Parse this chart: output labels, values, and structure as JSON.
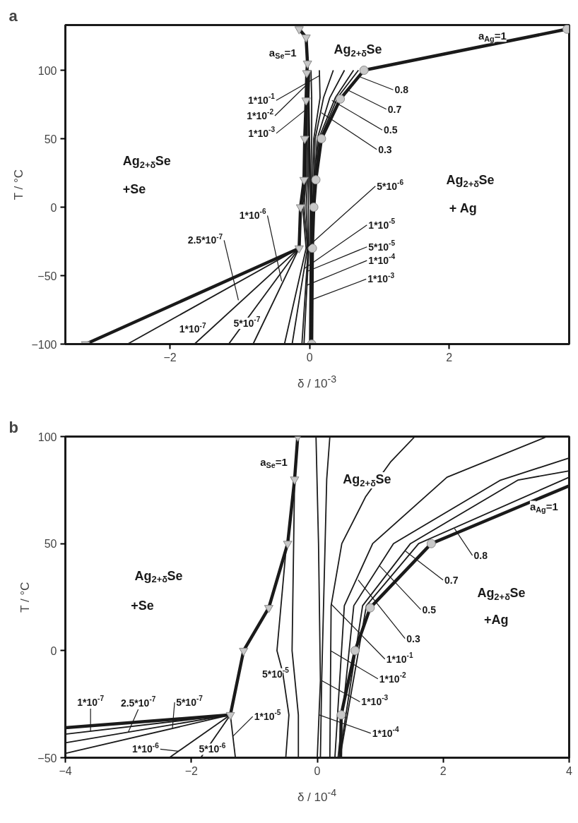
{
  "chart_data": [
    {
      "type": "line",
      "title": "a",
      "xlabel": "δ / 10$^{-3}$",
      "ylabel": "T / °C",
      "xlim": [
        -3.5,
        3.72
      ],
      "ylim": [
        -100,
        133
      ],
      "xticks": [
        -2,
        0,
        2
      ],
      "yticks": [
        -100,
        -50,
        0,
        50,
        100
      ],
      "series": [
        {
          "type": "line",
          "color": "#1a1a1a",
          "x": [
            -3.21,
            -0.15,
            -0.13,
            -0.08,
            -0.07,
            -0.05,
            -0.04,
            -0.03,
            -0.05,
            -0.15
          ],
          "values": [
            -100,
            -30,
            0,
            20,
            50,
            78,
            98,
            105,
            124,
            130
          ]
        },
        {
          "type": "line",
          "color": "#1a1a1a",
          "x": [
            0.03,
            0.04,
            0.06,
            0.09,
            0.17,
            0.44,
            0.78,
            3.69
          ],
          "values": [
            -100,
            -30,
            0,
            20,
            50,
            79,
            100,
            130
          ]
        },
        {
          "type": "line",
          "color": "#1a1a1a",
          "x": [
            -2.61,
            -0.15
          ],
          "values": [
            -100,
            -30
          ]
        },
        {
          "type": "line",
          "color": "#1a1a1a",
          "x": [
            -1.65,
            -0.15
          ],
          "values": [
            -100,
            -30
          ]
        },
        {
          "type": "line",
          "color": "#1a1a1a",
          "x": [
            -1.16,
            -0.15
          ],
          "values": [
            -100,
            -30
          ]
        },
        {
          "type": "line",
          "color": "#1a1a1a",
          "x": [
            -0.81,
            -0.15
          ],
          "values": [
            -100,
            -30
          ]
        },
        {
          "type": "line",
          "color": "#1a1a1a",
          "x": [
            -0.36,
            -0.05,
            -0.1,
            -0.06,
            -0.05,
            -0.04,
            -0.03
          ],
          "values": [
            -100,
            -30,
            0,
            20,
            50,
            80,
            100
          ]
        },
        {
          "type": "line",
          "color": "#1a1a1a",
          "x": [
            -0.25,
            -0.03,
            -0.08,
            -0.05,
            -0.04,
            -0.03,
            -0.02
          ],
          "values": [
            -100,
            -30,
            0,
            20,
            50,
            80,
            100
          ]
        },
        {
          "type": "line",
          "color": "#1a1a1a",
          "x": [
            -0.11,
            -0.02,
            -0.05,
            -0.03,
            -0.02,
            -0.02,
            -0.01
          ],
          "values": [
            -100,
            -30,
            0,
            20,
            50,
            80,
            100
          ]
        },
        {
          "type": "line",
          "color": "#1a1a1a",
          "x": [
            -0.08,
            -0.01,
            -0.02,
            -0.01,
            -0.01,
            -0.01,
            0.0
          ],
          "values": [
            -100,
            -30,
            0,
            20,
            50,
            80,
            100
          ]
        },
        {
          "type": "line",
          "color": "#1a1a1a",
          "x": [
            0.0,
            0.01,
            0.01,
            0.01,
            0.0,
            -0.01,
            -0.01
          ],
          "values": [
            -100,
            -30,
            0,
            20,
            50,
            80,
            100
          ]
        },
        {
          "type": "line",
          "color": "#1a1a1a",
          "x": [
            0.01,
            0.02,
            0.02,
            0.02,
            0.03,
            0.03,
            0.02
          ],
          "values": [
            -100,
            -30,
            0,
            20,
            50,
            80,
            100
          ]
        },
        {
          "type": "line",
          "color": "#1a1a1a",
          "x": [
            0.02,
            0.02,
            0.03,
            0.04,
            0.06,
            0.15,
            0.14
          ],
          "values": [
            -100,
            -30,
            0,
            20,
            50,
            80,
            100
          ]
        },
        {
          "type": "line",
          "color": "#1a1a1a",
          "x": [
            0.02,
            0.03,
            0.04,
            0.06,
            0.08,
            0.2,
            0.34
          ],
          "values": [
            -100,
            -30,
            0,
            20,
            50,
            80,
            100
          ]
        },
        {
          "type": "line",
          "color": "#1a1a1a",
          "x": [
            0.03,
            0.03,
            0.05,
            0.07,
            0.11,
            0.29,
            0.5
          ],
          "values": [
            -100,
            -30,
            0,
            20,
            50,
            80,
            100
          ]
        },
        {
          "type": "line",
          "color": "#1a1a1a",
          "x": [
            0.03,
            0.04,
            0.05,
            0.08,
            0.13,
            0.37,
            0.63
          ],
          "values": [
            -100,
            -30,
            0,
            20,
            50,
            80,
            100
          ]
        },
        {
          "type": "line",
          "color": "#1a1a1a",
          "x": [
            0.03,
            0.04,
            0.06,
            0.08,
            0.15,
            0.4,
            0.7
          ],
          "values": [
            -100,
            -30,
            0,
            20,
            50,
            80,
            100
          ]
        },
        {
          "type": "scatter",
          "marker": "triangle",
          "color": "#c8c8c8",
          "x": [
            -3.21,
            -0.15,
            -0.13,
            -0.08,
            -0.07,
            -0.05,
            -0.04,
            -0.03,
            -0.05,
            -0.15
          ],
          "values": [
            -100,
            -30,
            0,
            20,
            50,
            78,
            98,
            105,
            124,
            130
          ]
        },
        {
          "type": "scatter",
          "marker": "circle",
          "color": "#c8c8c8",
          "x": [
            0.03,
            0.04,
            0.06,
            0.09,
            0.17,
            0.44,
            0.78,
            3.69
          ],
          "values": [
            -100,
            -30,
            0,
            20,
            50,
            79,
            100,
            130
          ]
        }
      ],
      "annotations": [
        "Ag$_{2+δ}$Se",
        "+Se",
        "Ag$_{2+δ}$Se",
        "+ Ag",
        "Ag$_{2+δ}$Se",
        {
          "text": "a$_{Se}$=1",
          "x": -0.04,
          "y": 113
        },
        {
          "text": "a$_{Ag}$=1",
          "x": 2.62,
          "y": 119
        },
        {
          "text": "1*10$^{-1}$",
          "x": 0.14,
          "y": 96
        },
        {
          "text": "1*10$^{-2}$",
          "x": -0.01,
          "y": 91
        },
        {
          "text": "1*10$^{-3}$",
          "x": -0.01,
          "y": 73
        },
        {
          "text": "0.8",
          "x": 0.73,
          "y": 95
        },
        {
          "text": "0.7",
          "x": 0.53,
          "y": 86
        },
        {
          "text": "0.5",
          "x": 0.32,
          "y": 78
        },
        {
          "text": "0.3",
          "x": 0.17,
          "y": 69
        },
        {
          "text": "1*10$^{-6}$",
          "x": -0.4,
          "y": -54
        },
        {
          "text": "2.5*10$^{-7}$",
          "x": -1.02,
          "y": -68
        },
        {
          "text": "1*10$^{-7}$",
          "x": -2.03,
          "y": -84
        },
        {
          "text": "5*10$^{-7}$",
          "x": -1.04,
          "y": -92
        },
        {
          "text": "5*10$^{-6}$",
          "x": -0.05,
          "y": -30
        },
        {
          "text": "1*10$^{-5}$",
          "x": -0.08,
          "y": -45
        },
        {
          "text": "5*10$^{-5}$",
          "x": -0.04,
          "y": -47
        },
        {
          "text": "1*10$^{-4}$",
          "x": -0.04,
          "y": -57
        },
        {
          "text": "1*10$^{-3}$",
          "x": 0.01,
          "y": -68
        }
      ]
    },
    {
      "type": "line",
      "title": "b",
      "xlabel": "δ / 10$^{-4}$",
      "ylabel": "T / °C",
      "xlim": [
        -4,
        4
      ],
      "ylim": [
        -50,
        100
      ],
      "xticks": [
        -4,
        -2,
        0,
        2,
        4
      ],
      "yticks": [
        -50,
        0,
        50,
        100
      ],
      "series": [
        {
          "type": "line",
          "color": "#1a1a1a",
          "x": [
            -1.38,
            -1.17,
            -0.77,
            -0.47,
            -0.36,
            -0.31
          ],
          "values": [
            -30,
            0,
            20,
            50,
            80,
            100
          ]
        },
        {
          "type": "line",
          "color": "#1a1a1a",
          "x": [
            -4,
            -1.38
          ],
          "values": [
            -36,
            -30
          ]
        },
        {
          "type": "line",
          "color": "#1a1a1a",
          "x": [
            0.38,
            0.6,
            0.84,
            1.81
          ],
          "values": [
            -30,
            0,
            20,
            50
          ]
        },
        {
          "type": "line",
          "color": "#1a1a1a",
          "x": [
            0.37,
            0.38
          ],
          "values": [
            -50,
            -30
          ]
        },
        {
          "type": "line",
          "color": "#1a1a1a",
          "x": [
            1.81,
            4
          ],
          "values": [
            50,
            77
          ]
        },
        {
          "type": "line",
          "color": "#1a1a1a",
          "x": [
            -4,
            -1.38
          ],
          "values": [
            -39,
            -30
          ]
        },
        {
          "type": "line",
          "color": "#1a1a1a",
          "x": [
            -4,
            -1.38
          ],
          "values": [
            -43,
            -30
          ]
        },
        {
          "type": "line",
          "color": "#1a1a1a",
          "x": [
            -4,
            -1.38
          ],
          "values": [
            -48,
            -30
          ]
        },
        {
          "type": "line",
          "color": "#1a1a1a",
          "x": [
            -2.35,
            -1.38
          ],
          "values": [
            -50,
            -30
          ]
        },
        {
          "type": "line",
          "color": "#1a1a1a",
          "x": [
            -1.85,
            -1.38
          ],
          "values": [
            -50,
            -30
          ]
        },
        {
          "type": "line",
          "color": "#1a1a1a",
          "x": [
            -1.3,
            -1.38
          ],
          "values": [
            -50,
            -30
          ]
        },
        {
          "type": "line",
          "color": "#1a1a1a",
          "x": [
            -0.5,
            -0.64,
            -0.55,
            -0.45,
            -0.5
          ],
          "values": [
            46,
            0,
            -10,
            -30,
            -50
          ]
        },
        {
          "type": "line",
          "color": "#1a1a1a",
          "x": [
            -0.36,
            -0.4,
            -0.3,
            -0.3
          ],
          "values": [
            80,
            0,
            -30,
            -50
          ]
        },
        {
          "type": "line",
          "color": "#1a1a1a",
          "x": [
            -0.02,
            0.02,
            0.05,
            0.0
          ],
          "values": [
            100,
            50,
            -14,
            -50
          ]
        },
        {
          "type": "line",
          "color": "#1a1a1a",
          "x": [
            0.2,
            0.15,
            0.07,
            0.05
          ],
          "values": [
            100,
            80,
            -14,
            -50
          ]
        },
        {
          "type": "line",
          "color": "#1a1a1a",
          "x": [
            0.2,
            0.22,
            0.39,
            0.77,
            1.16,
            1.55
          ],
          "values": [
            -50,
            21,
            50,
            72,
            88,
            100
          ]
        },
        {
          "type": "line",
          "color": "#1a1a1a",
          "x": [
            0.28,
            0.43,
            0.88,
            2.06,
            3.65
          ],
          "values": [
            -50,
            21,
            50,
            81,
            100
          ]
        },
        {
          "type": "line",
          "color": "#1a1a1a",
          "x": [
            0.33,
            0.58,
            1.21,
            2.9,
            4
          ],
          "values": [
            -50,
            21,
            50,
            79.5,
            90
          ]
        },
        {
          "type": "line",
          "color": "#1a1a1a",
          "x": [
            0.35,
            0.72,
            1.48,
            3.19,
            4
          ],
          "values": [
            -50,
            21,
            50,
            79.7,
            84
          ]
        },
        {
          "type": "line",
          "color": "#1a1a1a",
          "x": [
            0.36,
            0.78,
            1.61,
            4
          ],
          "values": [
            -50,
            21,
            50,
            81
          ]
        },
        {
          "type": "scatter",
          "marker": "triangle",
          "color": "#c8c8c8",
          "x": [
            -1.38,
            -1.17,
            -0.77,
            -0.47,
            -0.36,
            -0.31
          ],
          "values": [
            -30,
            0,
            20,
            50,
            80,
            100
          ]
        },
        {
          "type": "scatter",
          "marker": "circle",
          "color": "#c8c8c8",
          "x": [
            0.38,
            0.6,
            0.84,
            1.81
          ],
          "values": [
            -30,
            0,
            20,
            50
          ]
        }
      ],
      "annotations": [
        "Ag$_{2+δ}$Se",
        "+Se",
        "Ag$_{2+δ}$Se",
        "Ag$_{2+δ}$Se",
        "+Ag",
        {
          "text": "a$_{Se}$=1",
          "x": -0.33,
          "y": 88
        },
        {
          "text": "a$_{Ag}$=1",
          "x": 3.6,
          "y": 72.5
        },
        {
          "text": "0.8",
          "x": 2.18,
          "y": 57
        },
        {
          "text": "0.7",
          "x": 1.4,
          "y": 46.5
        },
        {
          "text": "0.5",
          "x": 0.99,
          "y": 39.6
        },
        {
          "text": "0.3",
          "x": 0.65,
          "y": 33
        },
        {
          "text": "1*10$^{-1}$",
          "x": 0.22,
          "y": 21.8
        },
        {
          "text": "1*10$^{-2}$",
          "x": 0.21,
          "y": 0
        },
        {
          "text": "1*10$^{-3}$",
          "x": 0.07,
          "y": -14
        },
        {
          "text": "1*10$^{-4}$",
          "x": 0.03,
          "y": -30
        },
        {
          "text": "5*10$^{-5}$",
          "x": -0.64,
          "y": 0
        },
        {
          "text": "1*10$^{-5}$",
          "x": -1.34,
          "y": -40
        },
        {
          "text": "5*10$^{-6}$",
          "x": -1.78,
          "y": -47
        },
        {
          "text": "1*10$^{-6}$",
          "x": -2.2,
          "y": -47
        },
        {
          "text": "1*10$^{-7}$",
          "x": -3.6,
          "y": -37.6
        },
        {
          "text": "2.5*10$^{-7}$",
          "x": -3.0,
          "y": -38
        },
        {
          "text": "5*10$^{-7}$",
          "x": -2.3,
          "y": -36.3
        }
      ]
    }
  ]
}
